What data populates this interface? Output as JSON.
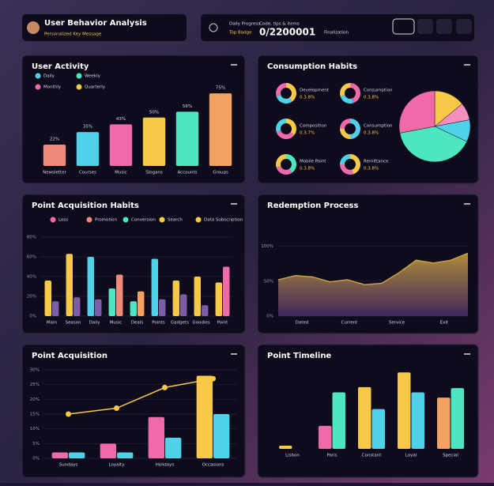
{
  "header": {
    "title": "User Behavior Analysis",
    "subtitle": "Personalized Key Message",
    "stats": [
      "Daily Progress",
      "Top Badge",
      "Code, tips & items",
      "0/2200001",
      "Finalization"
    ]
  },
  "panels": [
    {
      "title": "User Activity",
      "charts": [
        {
          "type": "bar",
          "legend": [
            {
              "name": "Daily",
              "color": "#4fd1e8"
            },
            {
              "name": "Weekly",
              "color": "#4ee6c0"
            },
            {
              "name": "Monthly",
              "color": "#f06aa8"
            },
            {
              "name": "Quarterly",
              "color": "#f7c948"
            }
          ],
          "categories": [
            "Newsletter",
            "Courses",
            "Music",
            "Slogans",
            "Accounts",
            "Groups"
          ],
          "values": [
            22,
            35,
            43,
            50,
            56,
            75
          ],
          "value_labels": [
            "22%",
            "35%",
            "43%",
            "50%",
            "56%",
            "75%"
          ],
          "colors": [
            "#f08a7a",
            "#4fd1e8",
            "#f06aa8",
            "#f7c948",
            "#4ee6c0",
            "#f4a261"
          ],
          "ylim": [
            0,
            80
          ]
        }
      ]
    },
    {
      "title": "Consumption Habits",
      "charts": [
        {
          "type": "donuts",
          "items": [
            {
              "label": "Development",
              "text": "0.3.8%",
              "values": [
                40,
                30,
                30
              ],
              "colors": [
                "#f7c948",
                "#4fd1e8",
                "#f06aa8"
              ]
            },
            {
              "label": "Consumption",
              "text": "0.3.8%",
              "values": [
                45,
                25,
                30
              ],
              "colors": [
                "#f06aa8",
                "#4fd1e8",
                "#f7c948"
              ]
            },
            {
              "label": "Composition",
              "text": "0.3.7%",
              "values": [
                35,
                35,
                30
              ],
              "colors": [
                "#f7c948",
                "#f06aa8",
                "#4fd1e8"
              ]
            },
            {
              "label": "Consumption",
              "text": "0.3.8%",
              "values": [
                50,
                25,
                25
              ],
              "colors": [
                "#4fd1e8",
                "#f7c948",
                "#f06aa8"
              ]
            },
            {
              "label": "Mobile Point",
              "text": "0.3.8%",
              "values": [
                40,
                30,
                30
              ],
              "colors": [
                "#4ee6c0",
                "#f06aa8",
                "#f7c948"
              ]
            },
            {
              "label": "Remittance",
              "text": "0.3.8%",
              "values": [
                45,
                30,
                25
              ],
              "colors": [
                "#f7c948",
                "#f06aa8",
                "#4fd1e8"
              ]
            }
          ]
        },
        {
          "type": "pie",
          "values": [
            14,
            8,
            10,
            40,
            28
          ],
          "colors": [
            "#f7c948",
            "#f58fc0",
            "#4fd1e8",
            "#4ee6c0",
            "#f06aa8"
          ]
        }
      ]
    },
    {
      "title": "Point Acquisition Habits",
      "charts": [
        {
          "type": "bar",
          "legend": [
            {
              "name": "Loss",
              "color": "#f06aa8"
            },
            {
              "name": "Promotion",
              "color": "#f08a7a"
            },
            {
              "name": "Conversion",
              "color": "#4ee6c0"
            },
            {
              "name": "Search",
              "color": "#f7c948"
            },
            {
              "name": "Data Subscription",
              "color": "#f7c948"
            }
          ],
          "categories": [
            "Main",
            "Season",
            "Daily",
            "Music",
            "Deals",
            "Points",
            "Gadgets",
            "Goodies",
            "Point"
          ],
          "series": [
            {
              "values": [
                36,
                63,
                60,
                28,
                15,
                58,
                36,
                40,
                34
              ],
              "colors": [
                "#f7c948",
                "#f7c948",
                "#4fd1e8",
                "#4ee6c0",
                "#4ee6c0",
                "#4fd1e8",
                "#f7c948",
                "#f7c948",
                "#f7c948"
              ]
            },
            {
              "values": [
                15,
                19,
                17,
                42,
                25,
                17,
                22,
                11,
                50
              ],
              "colors": [
                "#7b5ea7",
                "#7b5ea7",
                "#7b5ea7",
                "#f08a7a",
                "#f4a261",
                "#7b5ea7",
                "#7b5ea7",
                "#7b5ea7",
                "#f06aa8"
              ]
            }
          ],
          "ylim": [
            0,
            80
          ],
          "yticks": [
            {
              "value": 0,
              "label": "0%"
            },
            {
              "value": 20,
              "label": "20%"
            },
            {
              "value": 40,
              "label": "40%"
            },
            {
              "value": 60,
              "label": "60%"
            },
            {
              "value": 80,
              "label": "80%"
            }
          ]
        }
      ]
    },
    {
      "title": "Redemption Process",
      "charts": [
        {
          "type": "area",
          "values": [
            52,
            58,
            56,
            49,
            52,
            45,
            47,
            62,
            80,
            76,
            80,
            90
          ],
          "color": "#c9a13f",
          "xtick_labels": [
            "Dated",
            "Current",
            "Service",
            "Exit"
          ],
          "ylim": [
            0,
            120
          ],
          "yticks": [
            {
              "value": 0,
              "label": "0%"
            },
            {
              "value": 50,
              "label": "50%"
            },
            {
              "value": 100,
              "label": "100%"
            }
          ]
        }
      ]
    },
    {
      "title": "Point Acquisition",
      "charts": [
        {
          "type": "bar",
          "categories": [
            "Sundays",
            "Loyalty",
            "Holidays",
            "Occasions"
          ],
          "series": [
            {
              "values": [
                2,
                5,
                14,
                28
              ],
              "colors": [
                "#f06aa8",
                "#f06aa8",
                "#f06aa8",
                "#f7c948"
              ]
            },
            {
              "values": [
                2,
                2,
                7,
                15
              ],
              "colors": [
                "#4fd1e8",
                "#4fd1e8",
                "#4fd1e8",
                "#4fd1e8"
              ]
            }
          ],
          "line": {
            "values": [
              15,
              17,
              24,
              27
            ],
            "color": "#f7c948"
          },
          "ylim": [
            0,
            30
          ],
          "yticks": [
            {
              "value": 0,
              "label": "0%"
            },
            {
              "value": 5,
              "label": "5%"
            },
            {
              "value": 10,
              "label": "10%"
            },
            {
              "value": 15,
              "label": "15%"
            },
            {
              "value": 20,
              "label": "20%"
            },
            {
              "value": 25,
              "label": "25%"
            },
            {
              "value": 30,
              "label": "30%"
            }
          ]
        }
      ]
    },
    {
      "title": "Point Timeline",
      "charts": [
        {
          "type": "bar",
          "categories": [
            "Lisbon",
            "Paris",
            "Constant",
            "Loyal",
            "Special"
          ],
          "series": [
            {
              "values": [
                3,
                22,
                59,
                73,
                49
              ],
              "colors": [
                "#f7c948",
                "#f06aa8",
                "#f7c948",
                "#f7c948",
                "#f4a261"
              ]
            },
            {
              "values": [
                null,
                54,
                38,
                54,
                58
              ],
              "colors": [
                "#4fd1e8",
                "#4ee6c0",
                "#4fd1e8",
                "#4fd1e8",
                "#4ee6c0"
              ]
            }
          ],
          "ylim": [
            0,
            80
          ]
        }
      ]
    }
  ]
}
